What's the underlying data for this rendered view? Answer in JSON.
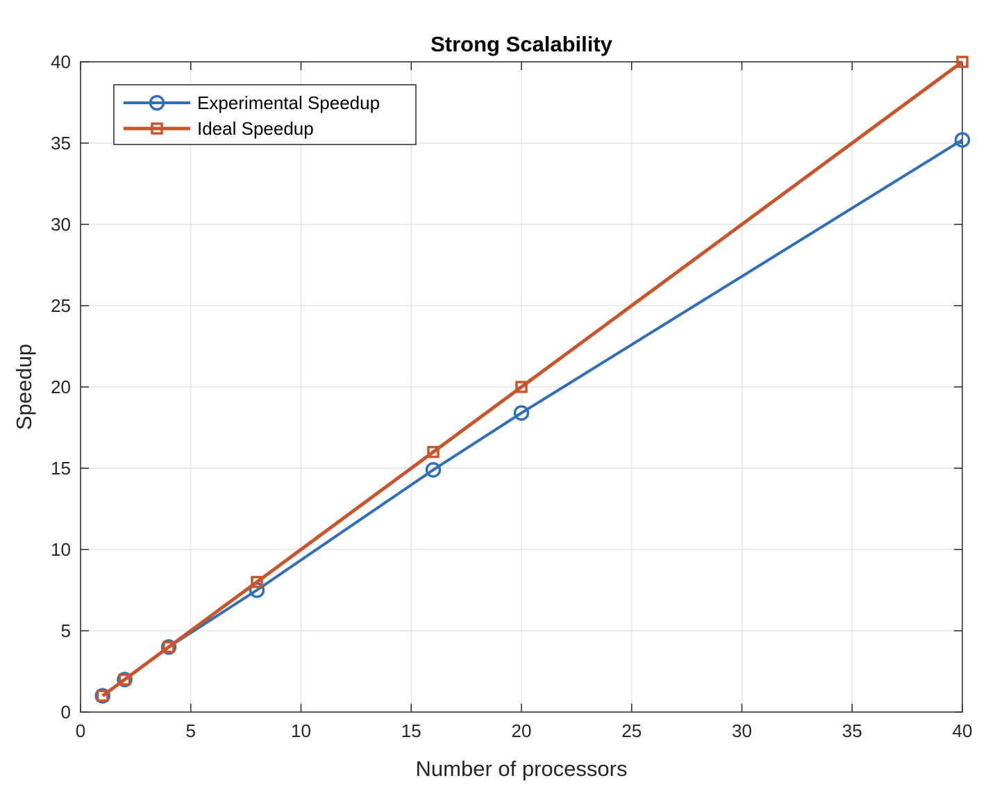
{
  "chart_data": {
    "type": "line",
    "title": "Strong Scalability",
    "xlabel": "Number of processors",
    "ylabel": "Speedup",
    "xlim": [
      0,
      40
    ],
    "ylim": [
      0,
      40
    ],
    "xticks": [
      "0",
      "5",
      "10",
      "15",
      "20",
      "25",
      "30",
      "35",
      "40"
    ],
    "yticks": [
      "0",
      "5",
      "10",
      "15",
      "20",
      "25",
      "30",
      "35",
      "40"
    ],
    "grid": true,
    "legend_position": "top-left",
    "series": [
      {
        "name": "Experimental Speedup",
        "marker": "circle",
        "color": "#2E6FB5",
        "x": [
          1,
          2,
          4,
          8,
          16,
          20,
          40
        ],
        "y": [
          1.0,
          2.0,
          4.0,
          7.5,
          14.9,
          18.4,
          35.2
        ]
      },
      {
        "name": "Ideal Speedup",
        "marker": "square",
        "color": "#C8552B",
        "x": [
          1,
          2,
          4,
          8,
          16,
          20,
          40
        ],
        "y": [
          1,
          2,
          4,
          8,
          16,
          20,
          40
        ]
      }
    ]
  }
}
